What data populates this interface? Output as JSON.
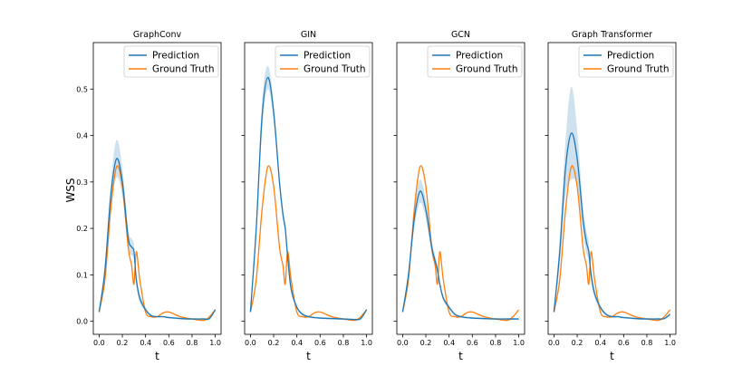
{
  "chart_data": {
    "type": "line",
    "ylabel": "WSS",
    "xlabel": "t",
    "xlim": [
      -0.05,
      1.05
    ],
    "ylim": [
      -0.028,
      0.6
    ],
    "xticks": [
      0.0,
      0.2,
      0.4,
      0.6,
      0.8,
      1.0
    ],
    "xtick_labels": [
      "0.0",
      "0.2",
      "0.4",
      "0.6",
      "0.8",
      "1.0"
    ],
    "yticks": [
      0.0,
      0.1,
      0.2,
      0.3,
      0.4,
      0.5
    ],
    "ytick_labels": [
      "0.0",
      "0.1",
      "0.2",
      "0.3",
      "0.4",
      "0.5"
    ],
    "sharey": true,
    "legend_location": "top-right",
    "colors": {
      "prediction": "#1f77b4",
      "ground_truth": "#ff7f0e",
      "band": "#1f77b4"
    },
    "x": [
      0.0,
      0.05,
      0.1,
      0.15,
      0.2,
      0.25,
      0.28,
      0.3,
      0.32,
      0.35,
      0.4,
      0.45,
      0.5,
      0.55,
      0.6,
      0.7,
      0.8,
      0.9,
      0.95,
      1.0
    ],
    "ground_truth": [
      0.02,
      0.09,
      0.24,
      0.333,
      0.29,
      0.16,
      0.12,
      0.08,
      0.15,
      0.09,
      0.02,
      0.01,
      0.01,
      0.018,
      0.02,
      0.01,
      0.005,
      0.002,
      0.01,
      0.025
    ],
    "panels": [
      {
        "title": "GraphConv",
        "prediction": [
          0.02,
          0.11,
          0.27,
          0.35,
          0.3,
          0.18,
          0.16,
          0.15,
          0.09,
          0.05,
          0.025,
          0.012,
          0.01,
          0.01,
          0.008,
          0.006,
          0.005,
          0.005,
          0.006,
          0.025
        ],
        "band": [
          0.002,
          0.01,
          0.025,
          0.04,
          0.03,
          0.02,
          0.018,
          0.015,
          0.012,
          0.01,
          0.005,
          0.003,
          0.002,
          0.002,
          0.002,
          0.002,
          0.002,
          0.002,
          0.002,
          0.003
        ]
      },
      {
        "title": "GIN",
        "prediction": [
          0.02,
          0.2,
          0.44,
          0.525,
          0.45,
          0.3,
          0.23,
          0.2,
          0.14,
          0.07,
          0.03,
          0.015,
          0.01,
          0.008,
          0.007,
          0.006,
          0.005,
          0.004,
          0.006,
          0.025
        ],
        "band": [
          0.003,
          0.02,
          0.03,
          0.025,
          0.02,
          0.015,
          0.012,
          0.01,
          0.008,
          0.006,
          0.004,
          0.003,
          0.002,
          0.002,
          0.002,
          0.002,
          0.002,
          0.002,
          0.002,
          0.003
        ]
      },
      {
        "title": "GCN",
        "prediction": [
          0.02,
          0.1,
          0.22,
          0.28,
          0.24,
          0.16,
          0.13,
          0.11,
          0.08,
          0.05,
          0.03,
          0.015,
          0.01,
          0.008,
          0.007,
          0.006,
          0.005,
          0.005,
          0.005,
          0.005
        ],
        "band": [
          0.002,
          0.01,
          0.02,
          0.025,
          0.02,
          0.015,
          0.012,
          0.01,
          0.008,
          0.006,
          0.004,
          0.003,
          0.002,
          0.002,
          0.002,
          0.002,
          0.002,
          0.002,
          0.002,
          0.002
        ]
      },
      {
        "title": "Graph Transformer",
        "prediction": [
          0.02,
          0.15,
          0.33,
          0.405,
          0.35,
          0.22,
          0.17,
          0.15,
          0.1,
          0.06,
          0.03,
          0.015,
          0.01,
          0.01,
          0.008,
          0.006,
          0.005,
          0.005,
          0.006,
          0.015
        ],
        "band": [
          0.003,
          0.03,
          0.06,
          0.1,
          0.06,
          0.03,
          0.025,
          0.02,
          0.015,
          0.01,
          0.005,
          0.003,
          0.002,
          0.002,
          0.002,
          0.002,
          0.002,
          0.002,
          0.002,
          0.003
        ]
      }
    ],
    "legend": [
      "Prediction",
      "Ground Truth"
    ]
  }
}
